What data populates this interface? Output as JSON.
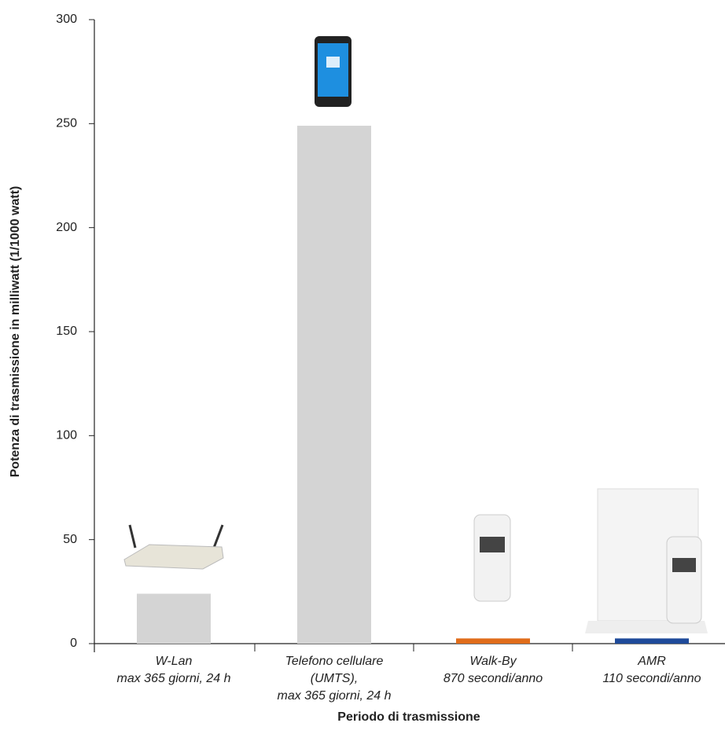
{
  "chart_data": {
    "type": "bar",
    "ylabel": "Potenza di trasmissione in milliwatt (1/1000 watt)",
    "xlabel": "Periodo di trasmissione",
    "categories": [
      [
        "W-Lan",
        "max 365 giorni, 24 h"
      ],
      [
        "Telefono cellulare",
        "(UMTS),",
        "max 365 giorni, 24 h"
      ],
      [
        "Walk-By",
        "870 secondi/anno"
      ],
      [
        "AMR",
        "110 secondi/anno"
      ]
    ],
    "values": [
      24,
      249,
      2.5,
      2.5
    ],
    "colors": [
      "#d4d4d4",
      "#d4d4d4",
      "#e06c1a",
      "#1e4a9a"
    ],
    "ylim": [
      0,
      300
    ],
    "yticks": [
      0,
      50,
      100,
      150,
      200,
      250,
      300
    ],
    "grid": false
  }
}
